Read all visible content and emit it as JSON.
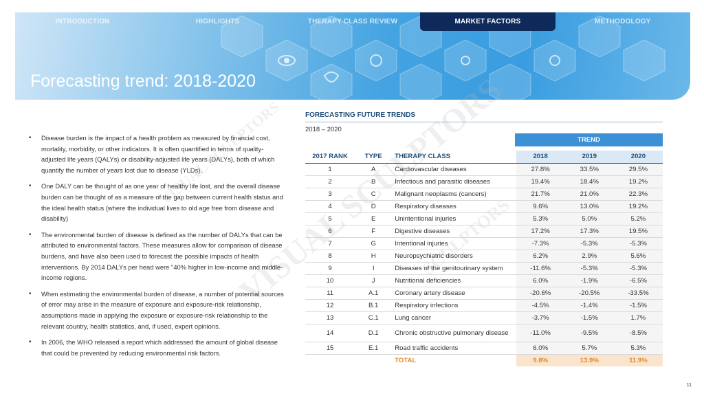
{
  "nav": {
    "tabs": [
      {
        "label": "INTRODUCTION",
        "active": false
      },
      {
        "label": "HIGHLIGHTS",
        "active": false
      },
      {
        "label": "THERAPY  CLASS REVIEW",
        "active": false
      },
      {
        "label": "MARKET  FACTORS",
        "active": true
      },
      {
        "label": "METHODOLOGY",
        "active": false
      }
    ]
  },
  "page_title": "Forecasting trend: 2018-2020",
  "bullets": [
    "Disease burden is the impact of a health problem as measured by financial cost, mortality, morbidity, or other indicators. It is often quantified in terms of quality-adjusted life years (QALYs) or disability-adjusted life years (DALYs), both of which quantify the number of years lost due to disease (YLDs).",
    "One DALY can be thought of as one year of healthy life lost, and the overall disease burden can be thought of as a measure of the gap between current health status and the ideal health status (where the individual lives to old age free from disease and disability)",
    "The environmental burden of disease is defined as the number of DALYs that can be attributed to environmental factors. These measures allow for comparison of disease burdens, and have also been used to forecast the possible impacts of health interventions. By 2014 DALYs per head were \"40% higher in low-income and middle-income regions.",
    "When estimating the environmental burden of disease, a number of potential sources of error may arise in the measure of exposure and exposure-risk relationship, assumptions made in applying the exposure or exposure-risk relationship to the relevant country, health statistics, and, if used, expert opinions.",
    "In 2006, the WHO released a report which addressed the amount of global disease that could be prevented by reducing environmental risk factors."
  ],
  "table": {
    "heading": "FORECASTING FUTURE TRENDS",
    "period": "2018 – 2020",
    "trend_label": "TREND",
    "columns": [
      "2017 RANK",
      "TYPE",
      "THERAPY CLASS",
      "2018",
      "2019",
      "2020"
    ],
    "rows": [
      {
        "rank": "1",
        "type": "A",
        "class": "Cardiovascular diseases",
        "y2018": "27.8%",
        "y2019": "33.5%",
        "y2020": "29.5%"
      },
      {
        "rank": "2",
        "type": "B",
        "class": "Infectious and parasitic diseases",
        "y2018": "19.4%",
        "y2019": "18.4%",
        "y2020": "19.2%"
      },
      {
        "rank": "3",
        "type": "C",
        "class": "Malignant neoplasms (cancers)",
        "y2018": "21.7%",
        "y2019": "21.0%",
        "y2020": "22.3%"
      },
      {
        "rank": "4",
        "type": "D",
        "class": "Respiratory diseases",
        "y2018": "9.6%",
        "y2019": "13.0%",
        "y2020": "19.2%"
      },
      {
        "rank": "5",
        "type": "E",
        "class": "Unintentional injuries",
        "y2018": "5.3%",
        "y2019": "5.0%",
        "y2020": "5.2%"
      },
      {
        "rank": "6",
        "type": "F",
        "class": "Digestive diseases",
        "y2018": "17.2%",
        "y2019": "17.3%",
        "y2020": "19.5%"
      },
      {
        "rank": "7",
        "type": "G",
        "class": "Intentional injuries",
        "y2018": "-7.3%",
        "y2019": "-5.3%",
        "y2020": "-5.3%"
      },
      {
        "rank": "8",
        "type": "H",
        "class": "Neuropsychiatric disorders",
        "y2018": "6.2%",
        "y2019": "2.9%",
        "y2020": "5.6%"
      },
      {
        "rank": "9",
        "type": "I",
        "class": "Diseases of the genitourinary system",
        "y2018": "-11.6%",
        "y2019": "-5.3%",
        "y2020": "-5.3%"
      },
      {
        "rank": "10",
        "type": "J",
        "class": "Nutritional deficiencies",
        "y2018": "6.0%",
        "y2019": "-1.9%",
        "y2020": "-6.5%"
      },
      {
        "rank": "11",
        "type": "A.1",
        "class": "Coronary artery disease",
        "y2018": "-20.6%",
        "y2019": "-20.5%",
        "y2020": "-33.5%"
      },
      {
        "rank": "12",
        "type": "B.1",
        "class": "Respiratory infections",
        "y2018": "-4.5%",
        "y2019": "-1.4%",
        "y2020": "-1.5%"
      },
      {
        "rank": "13",
        "type": "C.1",
        "class": "Lung cancer",
        "y2018": "-3.7%",
        "y2019": "-1.5%",
        "y2020": "1.7%"
      },
      {
        "rank": "14",
        "type": "D.1",
        "class": "Chronic obstructive pulmonary disease",
        "y2018": "-11.0%",
        "y2019": "-9.5%",
        "y2020": "-8.5%"
      },
      {
        "rank": "15",
        "type": "E.1",
        "class": "Road traffic accidents",
        "y2018": "6.0%",
        "y2019": "5.7%",
        "y2020": "5.3%"
      }
    ],
    "total": {
      "label": "TOTAL",
      "y2018": "9.8%",
      "y2019": "13.9%",
      "y2020": "11.9%"
    }
  },
  "watermark": [
    "VISUAL SCULPTORS",
    "VISUAL SCULPTORS",
    "SCULPTORS"
  ],
  "page_number": "11",
  "colors": {
    "nav_active": "#0d2a5a",
    "trend_header": "#3d8fd6",
    "heading": "#1f4e79",
    "total": "#e08a2c"
  }
}
